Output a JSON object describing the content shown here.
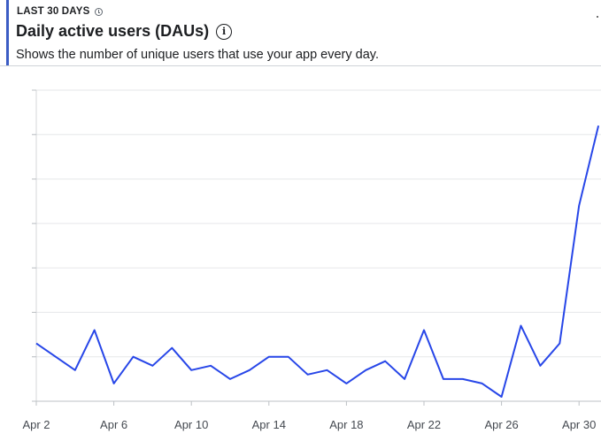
{
  "header": {
    "eyebrow": "LAST 30 DAYS",
    "title": "Daily active users (DAUs)",
    "description": "Shows the number of unique users that use your app every day."
  },
  "colors": {
    "accent": "#3b5cc4",
    "series_line": "#2746e8",
    "grid": "#e6e7e9"
  },
  "icons": {
    "eyebrow_info": "info-icon",
    "title_info": "info-icon"
  },
  "chart_data": {
    "type": "line",
    "title": "",
    "xlabel": "",
    "ylabel": "",
    "x": [
      "Apr 2",
      "Apr 3",
      "Apr 4",
      "Apr 5",
      "Apr 6",
      "Apr 7",
      "Apr 8",
      "Apr 9",
      "Apr 10",
      "Apr 11",
      "Apr 12",
      "Apr 13",
      "Apr 14",
      "Apr 15",
      "Apr 16",
      "Apr 17",
      "Apr 18",
      "Apr 19",
      "Apr 20",
      "Apr 21",
      "Apr 22",
      "Apr 23",
      "Apr 24",
      "Apr 25",
      "Apr 26",
      "Apr 27",
      "Apr 28",
      "Apr 29",
      "Apr 30",
      "May 1"
    ],
    "x_tick_labels": [
      "Apr 2",
      "Apr 6",
      "Apr 10",
      "Apr 14",
      "Apr 18",
      "Apr 22",
      "Apr 26",
      "Apr 30"
    ],
    "series": [
      {
        "values": [
          13,
          10,
          7,
          16,
          4,
          10,
          8,
          12,
          7,
          8,
          5,
          7,
          10,
          10,
          6,
          7,
          4,
          7,
          9,
          5,
          16,
          5,
          5,
          4,
          1,
          17,
          8,
          13,
          44,
          62
        ]
      }
    ],
    "ylim": [
      0,
      70
    ],
    "grid": true,
    "y_tick_labels_visible": false,
    "legend": "none"
  }
}
